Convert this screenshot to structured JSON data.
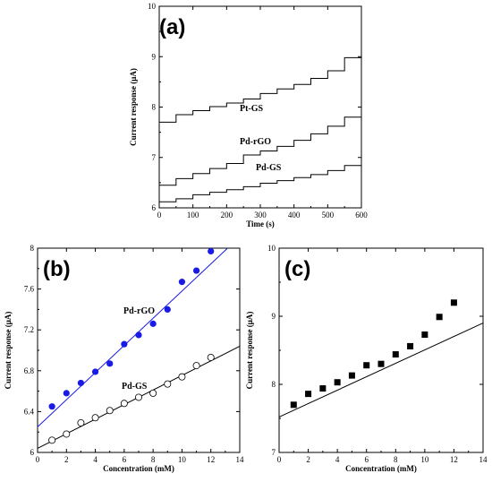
{
  "chart_data": [
    {
      "id": "a",
      "type": "line",
      "panel_label": "(a)",
      "xlabel": "Time (s)",
      "ylabel": "Current response (μA)",
      "xlim": [
        0,
        600
      ],
      "ylim": [
        6,
        10
      ],
      "xticks": [
        0,
        100,
        200,
        300,
        400,
        500,
        600
      ],
      "yticks": [
        6,
        7,
        8,
        9,
        10
      ],
      "x": [
        0,
        50,
        100,
        150,
        200,
        250,
        300,
        350,
        400,
        450,
        500,
        550,
        600
      ],
      "series": [
        {
          "name": "Pt-GS",
          "color": "#000000",
          "values": [
            7.7,
            7.85,
            7.93,
            8.01,
            8.08,
            8.16,
            8.27,
            8.36,
            8.45,
            8.57,
            8.72,
            8.98,
            9.22
          ]
        },
        {
          "name": "Pd-rGO",
          "color": "#000000",
          "values": [
            6.45,
            6.58,
            6.68,
            6.78,
            6.88,
            7.05,
            7.13,
            7.22,
            7.34,
            7.47,
            7.62,
            7.8,
            7.97
          ]
        },
        {
          "name": "Pd-GS",
          "color": "#000000",
          "values": [
            6.12,
            6.18,
            6.26,
            6.31,
            6.36,
            6.42,
            6.49,
            6.54,
            6.6,
            6.66,
            6.74,
            6.84,
            6.93
          ]
        }
      ]
    },
    {
      "id": "b",
      "type": "scatter",
      "panel_label": "(b)",
      "xlabel": "Concentration (mM)",
      "ylabel": "Current response (μA)",
      "xlim": [
        0,
        14
      ],
      "ylim": [
        6,
        8
      ],
      "xticks": [
        0,
        2,
        4,
        6,
        8,
        10,
        12,
        14
      ],
      "yticks": [
        6.0,
        6.4,
        6.8,
        7.2,
        7.6,
        8.0
      ],
      "ytick_labels": [
        "6",
        "6.4",
        "6.8",
        "7.2",
        "7.6",
        "8"
      ],
      "series": [
        {
          "name": "Pd-rGO",
          "marker": "filled-circle",
          "color": "#1a1ae6",
          "x": [
            1,
            2,
            3,
            4,
            5,
            6,
            7,
            8,
            9,
            10,
            11,
            12
          ],
          "values": [
            6.45,
            6.58,
            6.68,
            6.79,
            6.87,
            7.06,
            7.15,
            7.26,
            7.4,
            7.67,
            7.78,
            7.97
          ],
          "fit": [
            6.25,
            0.133
          ],
          "fit_color": "#1a1ae6"
        },
        {
          "name": "Pd-GS",
          "marker": "open-circle",
          "color": "#000000",
          "x": [
            1,
            2,
            3,
            4,
            5,
            6,
            7,
            8,
            9,
            10,
            11,
            12
          ],
          "values": [
            6.12,
            6.18,
            6.29,
            6.34,
            6.41,
            6.48,
            6.54,
            6.58,
            6.67,
            6.74,
            6.85,
            6.93
          ],
          "fit": [
            6.04,
            0.0714
          ],
          "fit_color": "#000000"
        }
      ]
    },
    {
      "id": "c",
      "type": "scatter",
      "panel_label": "(c)",
      "xlabel": "Concentration (mM)",
      "ylabel": "Current response (μA)",
      "xlim": [
        0,
        14
      ],
      "ylim": [
        7,
        10
      ],
      "xticks": [
        0,
        2,
        4,
        6,
        8,
        10,
        12,
        14
      ],
      "yticks": [
        7,
        8,
        9,
        10
      ],
      "series": [
        {
          "name": "",
          "marker": "filled-square",
          "color": "#000000",
          "x": [
            1,
            2,
            3,
            4,
            5,
            6,
            7,
            8,
            9,
            10,
            11,
            12
          ],
          "values": [
            7.7,
            7.86,
            7.94,
            8.03,
            8.13,
            8.28,
            8.3,
            8.44,
            8.56,
            8.73,
            8.99,
            9.2
          ],
          "fit": [
            7.52,
            0.0986
          ],
          "fit_color": "#000000"
        }
      ]
    }
  ]
}
